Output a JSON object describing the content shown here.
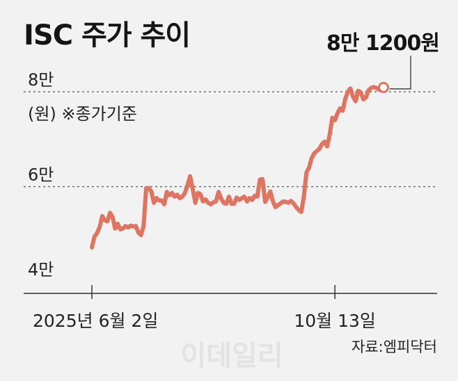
{
  "header": {
    "title": "ISC 주가 추이",
    "last_value_label": "8만 1200원"
  },
  "unit_note": "(원) ※종가기준",
  "source": "자료:엠피닥터",
  "watermark": "이데일리",
  "chart_data": {
    "type": "line",
    "title": "ISC 주가 추이",
    "xlabel": "",
    "ylabel": "(원) ※종가기준",
    "ylim": [
      40000,
      81200
    ],
    "y_ticks": [
      {
        "value": 40000,
        "label": "4만"
      },
      {
        "value": 60000,
        "label": "6만"
      },
      {
        "value": 80000,
        "label": "8만"
      }
    ],
    "x_tick_labels": [
      {
        "index": 0,
        "label": "2025년 6월 2일"
      },
      {
        "index": 94,
        "label": "10월 13일"
      }
    ],
    "gridlines": [
      60000,
      80000
    ],
    "last_point_label": "8만 1200원",
    "line_color": "#df7460",
    "series": [
      {
        "values": [
          47200,
          49500,
          50200,
          51500,
          53800,
          52900,
          52700,
          54500,
          53600,
          51200,
          52200,
          51000,
          51200,
          51700,
          51400,
          51800,
          51600,
          51700,
          50300,
          49800,
          51700,
          59700,
          59700,
          59000,
          56600,
          57600,
          57100,
          57100,
          56300,
          58900,
          58200,
          58700,
          57900,
          58300,
          57600,
          57900,
          58700,
          60300,
          62200,
          59500,
          56600,
          58700,
          58400,
          56900,
          57300,
          56600,
          56300,
          56700,
          56900,
          58900,
          57500,
          56600,
          56400,
          57900,
          56400,
          56400,
          57700,
          57200,
          57600,
          57900,
          56900,
          57600,
          57200,
          58100,
          57900,
          61500,
          61600,
          56800,
          57800,
          59000,
          57000,
          55700,
          56100,
          56500,
          56900,
          56800,
          56600,
          57000,
          56500,
          55700,
          55100,
          54700,
          58000,
          63000,
          64000,
          66000,
          67000,
          67500,
          68000,
          69000,
          69500,
          68500,
          71000,
          74500,
          74000,
          75500,
          76500,
          76000,
          78500,
          80000,
          80700,
          79000,
          78000,
          80200,
          79900,
          78400,
          78800,
          80300,
          80800,
          81000,
          80800,
          80500,
          81200
        ]
      }
    ]
  }
}
